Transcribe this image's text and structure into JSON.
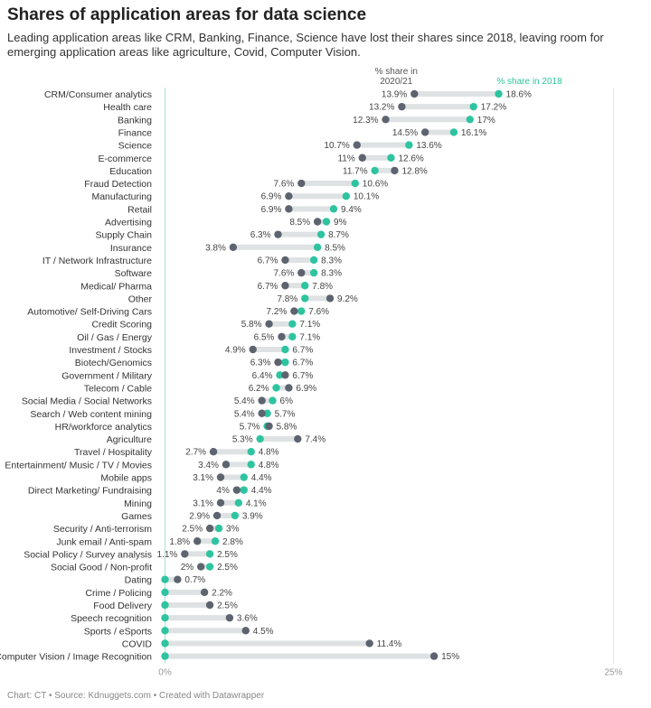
{
  "title": "Shares of application areas for data science",
  "subtitle": "Leading application areas like CRM, Banking, Finance, Science have lost their shares since 2018, leaving room for emerging application areas like agriculture, Covid, Computer Vision.",
  "footer": "Chart: CT • Source: Kdnuggets.com • Created with Datawrapper",
  "colors": {
    "share_2020_21": "#5d6470",
    "share_2018": "#2ec4a0",
    "bar": "#dfe2e3",
    "axis": "#a9e3d4",
    "grid": "#e3e6e7"
  },
  "chart_data": {
    "type": "dot-range",
    "title": "Shares of application areas for data science",
    "x_unit": "%",
    "xlim": [
      0,
      25
    ],
    "x_ticks": [
      "0%",
      "25%"
    ],
    "series": [
      {
        "name": "% share in 2020/21"
      },
      {
        "name": "% share in 2018"
      }
    ],
    "rows": [
      {
        "label": "CRM/Consumer analytics",
        "v2020": 13.9,
        "v2018": 18.6
      },
      {
        "label": "Health care",
        "v2020": 13.2,
        "v2018": 17.2
      },
      {
        "label": "Banking",
        "v2020": 12.3,
        "v2018": 17
      },
      {
        "label": "Finance",
        "v2020": 14.5,
        "v2018": 16.1
      },
      {
        "label": "Science",
        "v2020": 10.7,
        "v2018": 13.6
      },
      {
        "label": "E-commerce",
        "v2020": 11,
        "v2018": 12.6
      },
      {
        "label": "Education",
        "v2020": 12.8,
        "v2018": 11.7
      },
      {
        "label": "Fraud Detection",
        "v2020": 7.6,
        "v2018": 10.6
      },
      {
        "label": "Manufacturing",
        "v2020": 6.9,
        "v2018": 10.1
      },
      {
        "label": "Retail",
        "v2020": 6.9,
        "v2018": 9.4
      },
      {
        "label": "Advertising",
        "v2020": 8.5,
        "v2018": 9
      },
      {
        "label": "Supply Chain",
        "v2020": 6.3,
        "v2018": 8.7
      },
      {
        "label": "Insurance",
        "v2020": 3.8,
        "v2018": 8.5
      },
      {
        "label": "IT / Network Infrastructure",
        "v2020": 6.7,
        "v2018": 8.3
      },
      {
        "label": "Software",
        "v2020": 7.6,
        "v2018": 8.3
      },
      {
        "label": "Medical/ Pharma",
        "v2020": 6.7,
        "v2018": 7.8
      },
      {
        "label": "Other",
        "v2020": 9.2,
        "v2018": 7.8
      },
      {
        "label": "Automotive/ Self-Driving Cars",
        "v2020": 7.2,
        "v2018": 7.6
      },
      {
        "label": "Credit Scoring",
        "v2020": 5.8,
        "v2018": 7.1
      },
      {
        "label": "Oil / Gas / Energy",
        "v2020": 6.5,
        "v2018": 7.1
      },
      {
        "label": "Investment / Stocks",
        "v2020": 4.9,
        "v2018": 6.7
      },
      {
        "label": "Biotech/Genomics",
        "v2020": 6.3,
        "v2018": 6.7
      },
      {
        "label": "Government / Military",
        "v2020": 6.7,
        "v2018": 6.4
      },
      {
        "label": "Telecom / Cable",
        "v2020": 6.9,
        "v2018": 6.2
      },
      {
        "label": "Social Media / Social Networks",
        "v2020": 5.4,
        "v2018": 6
      },
      {
        "label": "Search / Web content mining",
        "v2020": 5.4,
        "v2018": 5.7
      },
      {
        "label": "HR/workforce analytics",
        "v2020": 5.8,
        "v2018": 5.7
      },
      {
        "label": "Agriculture",
        "v2020": 7.4,
        "v2018": 5.3
      },
      {
        "label": "Travel / Hospitality",
        "v2020": 2.7,
        "v2018": 4.8
      },
      {
        "label": "Entertainment/ Music / TV / Movies",
        "v2020": 3.4,
        "v2018": 4.8
      },
      {
        "label": "Mobile apps",
        "v2020": 3.1,
        "v2018": 4.4
      },
      {
        "label": "Direct Marketing/ Fundraising",
        "v2020": 4,
        "v2018": 4.4
      },
      {
        "label": "Mining",
        "v2020": 3.1,
        "v2018": 4.1
      },
      {
        "label": "Games",
        "v2020": 2.9,
        "v2018": 3.9
      },
      {
        "label": "Security / Anti-terrorism",
        "v2020": 2.5,
        "v2018": 3
      },
      {
        "label": "Junk email / Anti-spam",
        "v2020": 1.8,
        "v2018": 2.8
      },
      {
        "label": "Social Policy / Survey analysis",
        "v2020": 1.1,
        "v2018": 2.5
      },
      {
        "label": "Social Good / Non-profit",
        "v2020": 2,
        "v2018": 2.5
      },
      {
        "label": "Dating",
        "v2020": 0.7,
        "v2018": null
      },
      {
        "label": "Crime / Policing",
        "v2020": 2.2,
        "v2018": null
      },
      {
        "label": "Food Delivery",
        "v2020": 2.5,
        "v2018": null
      },
      {
        "label": "Speech recognition",
        "v2020": 3.6,
        "v2018": null
      },
      {
        "label": "Sports / eSports",
        "v2020": 4.5,
        "v2018": null
      },
      {
        "label": "COVID",
        "v2020": 11.4,
        "v2018": null
      },
      {
        "label": "Computer Vision / Image Recognition",
        "v2020": 15,
        "v2018": null
      }
    ]
  }
}
